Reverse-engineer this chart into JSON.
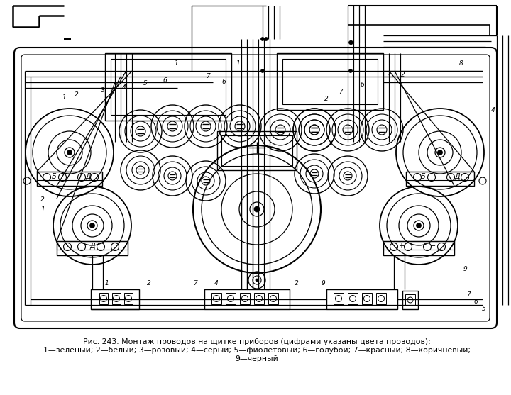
{
  "title_line1": "Рис. 243. Монтаж проводов на щитке приборов (цифрами указаны цвета проводов):",
  "title_line2": "1—зеленый; 2—белый; 3—розовый; 4—серый; 5—фиолетовый; 6—голубой; 7—красный; 8—коричневый;",
  "title_line3": "9—черный",
  "bg_color": "#ffffff",
  "line_color": "#000000",
  "fig_width": 7.2,
  "fig_height": 5.57,
  "dpi": 100
}
